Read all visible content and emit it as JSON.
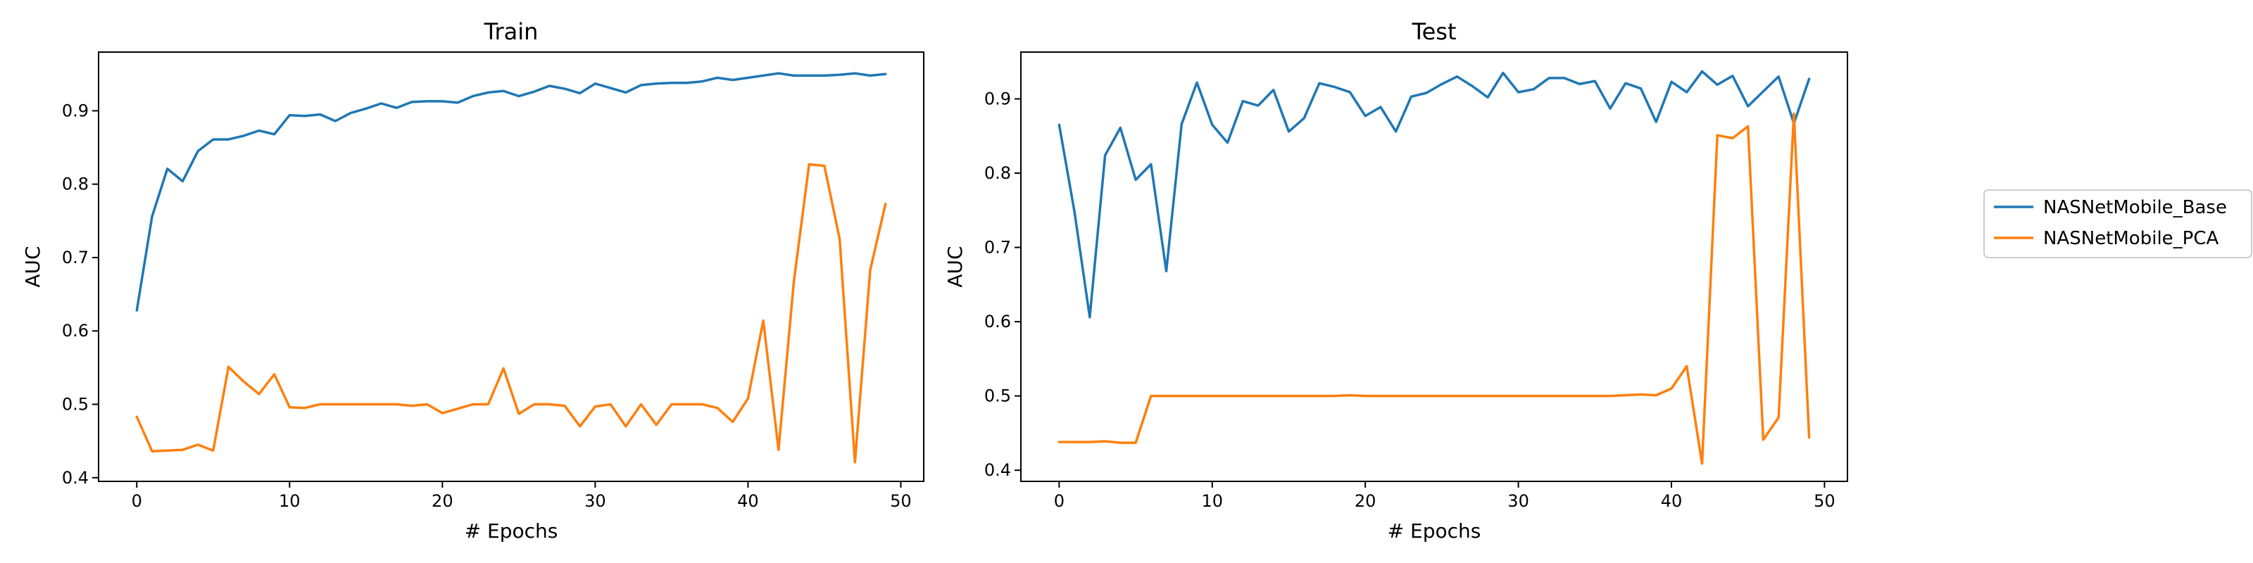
{
  "chart_data": [
    {
      "type": "line",
      "title": "Train",
      "xlabel": "# Epochs",
      "ylabel": "AUC",
      "xlim": [
        -2.5,
        51.5
      ],
      "ylim": [
        0.395,
        0.98
      ],
      "xticks": [
        0,
        10,
        20,
        30,
        40,
        50
      ],
      "yticks": [
        0.4,
        0.5,
        0.6,
        0.7,
        0.8,
        0.9
      ],
      "x": [
        0,
        1,
        2,
        3,
        4,
        5,
        6,
        7,
        8,
        9,
        10,
        11,
        12,
        13,
        14,
        15,
        16,
        17,
        18,
        19,
        20,
        21,
        22,
        23,
        24,
        25,
        26,
        27,
        28,
        29,
        30,
        31,
        32,
        33,
        34,
        35,
        36,
        37,
        38,
        39,
        40,
        41,
        42,
        43,
        44,
        45,
        46,
        47,
        48,
        49
      ],
      "series": [
        {
          "name": "NASNetMobile_Base",
          "color": "#1f77b4",
          "values": [
            0.628,
            0.756,
            0.821,
            0.804,
            0.845,
            0.861,
            0.861,
            0.866,
            0.873,
            0.868,
            0.894,
            0.893,
            0.895,
            0.886,
            0.897,
            0.903,
            0.91,
            0.904,
            0.912,
            0.913,
            0.913,
            0.911,
            0.92,
            0.925,
            0.927,
            0.92,
            0.926,
            0.934,
            0.93,
            0.924,
            0.937,
            0.931,
            0.925,
            0.935,
            0.937,
            0.938,
            0.938,
            0.94,
            0.945,
            0.942,
            0.945,
            0.948,
            0.951,
            0.948,
            0.948,
            0.948,
            0.949,
            0.951,
            0.948,
            0.95
          ]
        },
        {
          "name": "NASNetMobile_PCA",
          "color": "#ff7f0e",
          "values": [
            0.483,
            0.436,
            0.437,
            0.438,
            0.445,
            0.437,
            0.551,
            0.531,
            0.514,
            0.541,
            0.496,
            0.495,
            0.5,
            0.5,
            0.5,
            0.5,
            0.5,
            0.5,
            0.498,
            0.5,
            0.488,
            0.494,
            0.5,
            0.5,
            0.549,
            0.487,
            0.5,
            0.5,
            0.498,
            0.47,
            0.497,
            0.5,
            0.47,
            0.5,
            0.472,
            0.5,
            0.5,
            0.5,
            0.495,
            0.476,
            0.508,
            0.614,
            0.438,
            0.667,
            0.827,
            0.825,
            0.725,
            0.421,
            0.683,
            0.773
          ]
        }
      ]
    },
    {
      "type": "line",
      "title": "Test",
      "xlabel": "# Epochs",
      "ylabel": "AUC",
      "xlim": [
        -2.5,
        51.5
      ],
      "ylim": [
        0.385,
        0.963
      ],
      "xticks": [
        0,
        10,
        20,
        30,
        40,
        50
      ],
      "yticks": [
        0.4,
        0.5,
        0.6,
        0.7,
        0.8,
        0.9
      ],
      "x": [
        0,
        1,
        2,
        3,
        4,
        5,
        6,
        7,
        8,
        9,
        10,
        11,
        12,
        13,
        14,
        15,
        16,
        17,
        18,
        19,
        20,
        21,
        22,
        23,
        24,
        25,
        26,
        27,
        28,
        29,
        30,
        31,
        32,
        33,
        34,
        35,
        36,
        37,
        38,
        39,
        40,
        41,
        42,
        43,
        44,
        45,
        46,
        47,
        48,
        49
      ],
      "series": [
        {
          "name": "NASNetMobile_Base",
          "color": "#1f77b4",
          "values": [
            0.865,
            0.748,
            0.606,
            0.824,
            0.861,
            0.791,
            0.812,
            0.668,
            0.866,
            0.922,
            0.865,
            0.841,
            0.897,
            0.891,
            0.912,
            0.856,
            0.874,
            0.921,
            0.916,
            0.909,
            0.877,
            0.889,
            0.856,
            0.903,
            0.908,
            0.92,
            0.93,
            0.917,
            0.902,
            0.935,
            0.909,
            0.913,
            0.928,
            0.928,
            0.92,
            0.924,
            0.887,
            0.921,
            0.914,
            0.869,
            0.923,
            0.909,
            0.937,
            0.919,
            0.931,
            0.89,
            0.91,
            0.93,
            0.867,
            0.927
          ]
        },
        {
          "name": "NASNetMobile_PCA",
          "color": "#ff7f0e",
          "values": [
            0.438,
            0.438,
            0.438,
            0.439,
            0.437,
            0.437,
            0.5,
            0.5,
            0.5,
            0.5,
            0.5,
            0.5,
            0.5,
            0.5,
            0.5,
            0.5,
            0.5,
            0.5,
            0.5,
            0.501,
            0.5,
            0.5,
            0.5,
            0.5,
            0.5,
            0.5,
            0.5,
            0.5,
            0.5,
            0.5,
            0.5,
            0.5,
            0.5,
            0.5,
            0.5,
            0.5,
            0.5,
            0.501,
            0.502,
            0.501,
            0.51,
            0.54,
            0.409,
            0.851,
            0.847,
            0.863,
            0.441,
            0.471,
            0.88,
            0.444
          ]
        }
      ]
    }
  ],
  "legend": {
    "entries": [
      {
        "label": "NASNetMobile_Base",
        "color": "#1f77b4"
      },
      {
        "label": "NASNetMobile_PCA",
        "color": "#ff7f0e"
      }
    ]
  }
}
